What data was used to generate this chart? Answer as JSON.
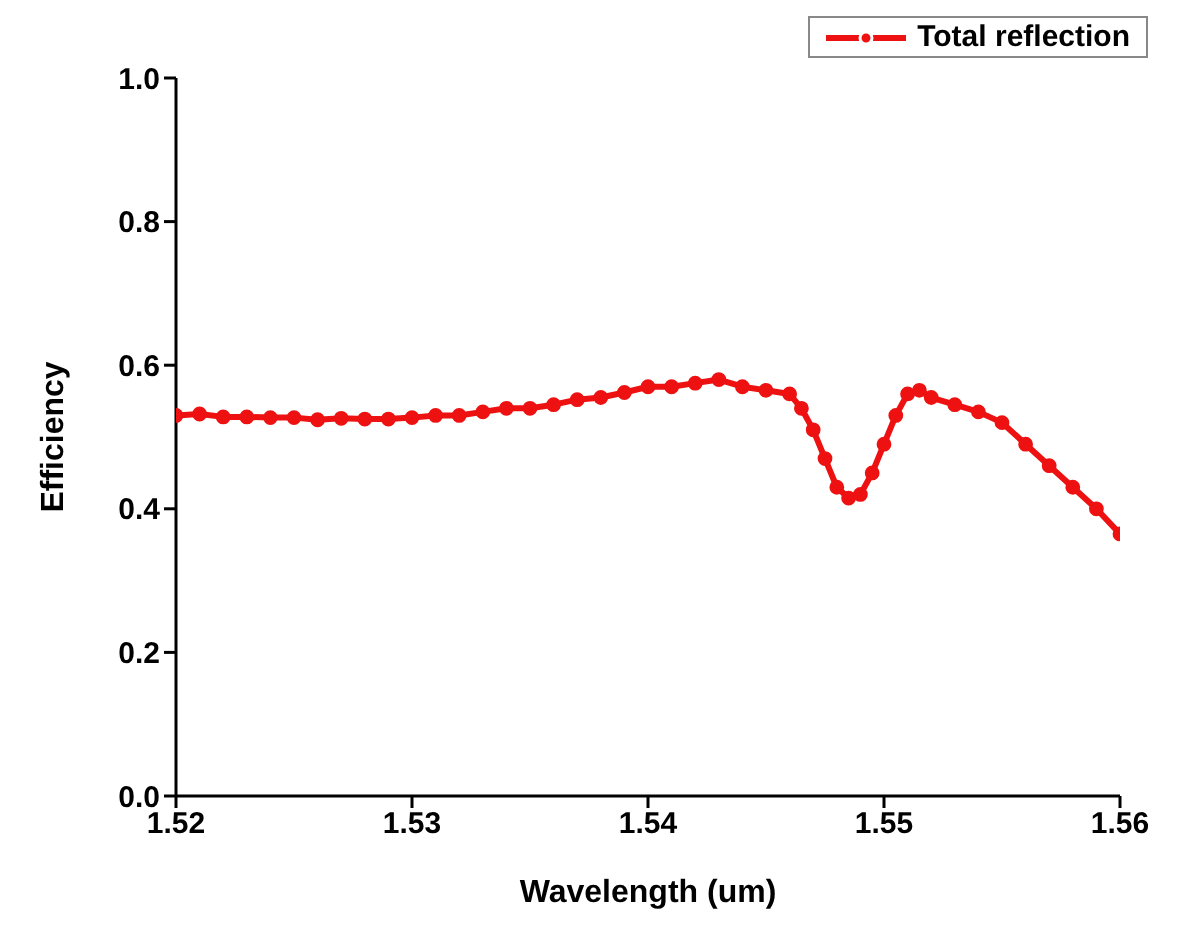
{
  "chart_data": {
    "type": "line",
    "xlabel": "Wavelength (um)",
    "ylabel": "Efficiency",
    "x": [
      1.52,
      1.521,
      1.522,
      1.523,
      1.524,
      1.525,
      1.526,
      1.527,
      1.528,
      1.529,
      1.53,
      1.531,
      1.532,
      1.533,
      1.534,
      1.535,
      1.536,
      1.537,
      1.538,
      1.539,
      1.54,
      1.541,
      1.542,
      1.543,
      1.544,
      1.545,
      1.546,
      1.5465,
      1.547,
      1.5475,
      1.548,
      1.5485,
      1.549,
      1.5495,
      1.55,
      1.5505,
      1.551,
      1.5515,
      1.552,
      1.553,
      1.554,
      1.555,
      1.556,
      1.557,
      1.558,
      1.559,
      1.56
    ],
    "series": [
      {
        "name": "Total reflection",
        "color": "#ee1111",
        "values": [
          0.53,
          0.532,
          0.528,
          0.528,
          0.527,
          0.527,
          0.524,
          0.526,
          0.525,
          0.525,
          0.527,
          0.53,
          0.53,
          0.535,
          0.54,
          0.54,
          0.545,
          0.552,
          0.555,
          0.562,
          0.57,
          0.57,
          0.575,
          0.58,
          0.57,
          0.565,
          0.56,
          0.54,
          0.51,
          0.47,
          0.43,
          0.415,
          0.42,
          0.45,
          0.49,
          0.53,
          0.56,
          0.565,
          0.555,
          0.545,
          0.535,
          0.52,
          0.49,
          0.46,
          0.43,
          0.4,
          0.365
        ]
      }
    ],
    "xlim": [
      1.52,
      1.56
    ],
    "xticks": [
      1.52,
      1.53,
      1.54,
      1.55,
      1.56
    ],
    "ylim": [
      0,
      1
    ],
    "yticks": [
      {
        "value": 0,
        "label": "0.0"
      },
      0.2,
      0.4,
      0.6,
      0.8,
      {
        "value": 1,
        "label": "1.0"
      }
    ],
    "legend": "top right",
    "marker": "circle",
    "line_style": "solid"
  }
}
